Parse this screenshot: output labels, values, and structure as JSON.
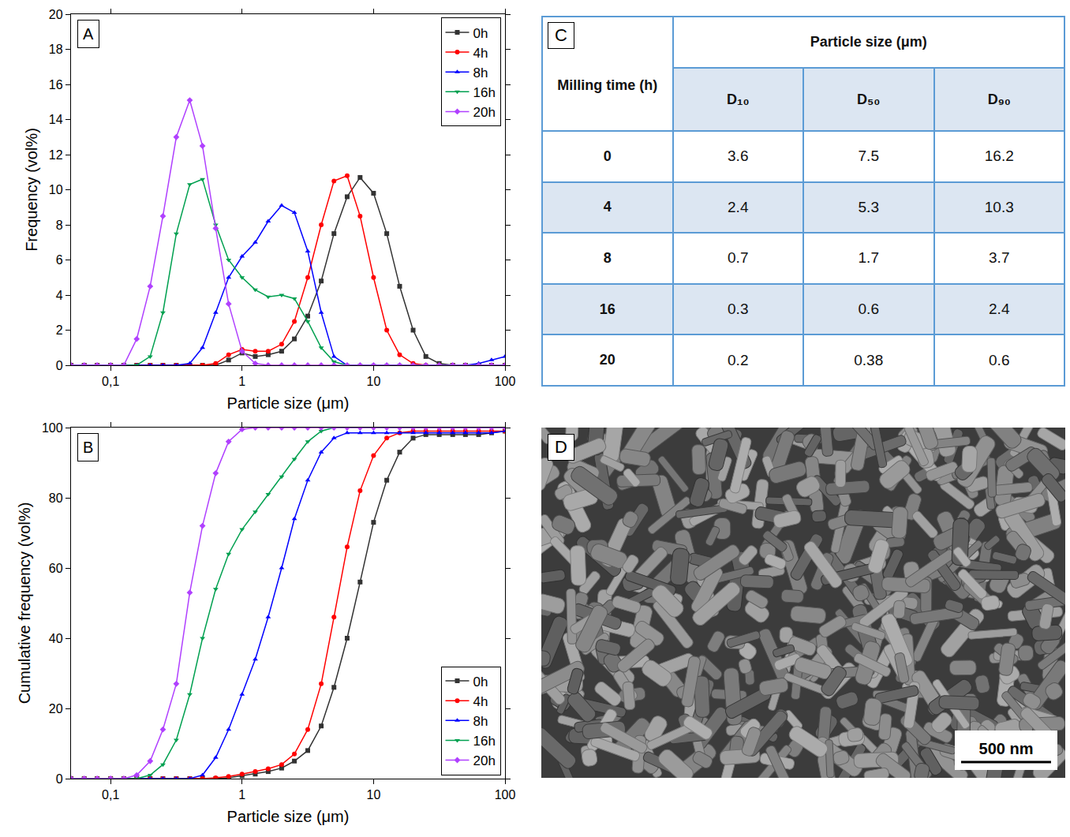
{
  "chart_data": [
    {
      "type": "line",
      "annotations": [
        {
          "text": "A"
        }
      ],
      "x_label": "Particle size (μm)",
      "y_label": "Frequency (vol%)",
      "log": "x",
      "grid": false,
      "legend": "top right",
      "xlim": [
        0.05,
        100
      ],
      "xticks": [
        {
          "value": 0.1,
          "label": "0,1"
        },
        1,
        10,
        100
      ],
      "ylim": [
        0,
        20
      ],
      "yticks": [
        0,
        2,
        4,
        6,
        8,
        10,
        12,
        14,
        16,
        18,
        20
      ],
      "x": [
        0.05,
        0.063,
        0.079,
        0.1,
        0.126,
        0.158,
        0.2,
        0.25,
        0.316,
        0.4,
        0.5,
        0.63,
        0.79,
        1,
        1.26,
        1.58,
        2,
        2.5,
        3.16,
        4,
        5,
        6.3,
        7.9,
        10,
        12.6,
        15.8,
        20,
        25,
        31.6,
        40,
        50,
        63,
        79,
        100
      ],
      "series": [
        {
          "name": "0h",
          "color": "#333333",
          "marker": "square",
          "values": [
            0,
            0,
            0,
            0,
            0,
            0,
            0,
            0,
            0,
            0,
            0,
            0,
            0.3,
            0.7,
            0.5,
            0.6,
            0.8,
            1.5,
            2.8,
            4.8,
            7.5,
            9.6,
            10.7,
            9.8,
            7.5,
            4.5,
            2,
            0.5,
            0.1,
            0,
            0,
            0,
            0,
            0
          ]
        },
        {
          "name": "4h",
          "color": "#ff0000",
          "marker": "circle",
          "values": [
            0,
            0,
            0,
            0,
            0,
            0,
            0,
            0,
            0,
            0,
            0,
            0.1,
            0.6,
            0.9,
            0.8,
            0.8,
            1.2,
            2.5,
            5,
            8,
            10.5,
            10.8,
            8.5,
            5,
            2,
            0.6,
            0.1,
            0,
            0,
            0,
            0,
            0,
            0,
            0
          ]
        },
        {
          "name": "8h",
          "color": "#0000ff",
          "marker": "triangle-up",
          "values": [
            0,
            0,
            0,
            0,
            0,
            0,
            0,
            0,
            0,
            0.1,
            1,
            3,
            5,
            6.2,
            7,
            8.2,
            9.1,
            8.7,
            6.5,
            3,
            0.5,
            0,
            0,
            0,
            0,
            0,
            0,
            0,
            0,
            0,
            0,
            0.1,
            0.3,
            0.5
          ]
        },
        {
          "name": "16h",
          "color": "#00a050",
          "marker": "triangle-down",
          "values": [
            0,
            0,
            0,
            0,
            0,
            0,
            0.5,
            3,
            7.5,
            10.3,
            10.6,
            8,
            6,
            5,
            4.3,
            3.9,
            4,
            3.8,
            2.5,
            1,
            0.2,
            0,
            0,
            0,
            0,
            0,
            0,
            0,
            0,
            0,
            0,
            0,
            0,
            0
          ]
        },
        {
          "name": "20h",
          "color": "#b040ff",
          "marker": "diamond",
          "values": [
            0,
            0,
            0,
            0,
            0,
            1.5,
            4.5,
            8.5,
            13,
            15.1,
            12.5,
            7.8,
            3.5,
            0.8,
            0.1,
            0,
            0,
            0,
            0,
            0,
            0,
            0,
            0,
            0,
            0,
            0,
            0,
            0,
            0,
            0,
            0,
            0,
            0,
            0
          ]
        }
      ]
    },
    {
      "type": "line",
      "annotations": [
        {
          "text": "B"
        }
      ],
      "x_label": "Particle size (μm)",
      "y_label": "Cumulative frequency (vol%)",
      "log": "x",
      "grid": false,
      "legend": "bottom right",
      "xlim": [
        0.05,
        100
      ],
      "xticks": [
        {
          "value": 0.1,
          "label": "0,1"
        },
        1,
        10,
        100
      ],
      "ylim": [
        0,
        100
      ],
      "yticks": [
        0,
        20,
        40,
        60,
        80,
        100
      ],
      "x": [
        0.05,
        0.063,
        0.079,
        0.1,
        0.126,
        0.158,
        0.2,
        0.25,
        0.316,
        0.4,
        0.5,
        0.63,
        0.79,
        1,
        1.26,
        1.58,
        2,
        2.5,
        3.16,
        4,
        5,
        6.3,
        7.9,
        10,
        12.6,
        15.8,
        20,
        25,
        31.6,
        40,
        50,
        63,
        79,
        100
      ],
      "series": [
        {
          "name": "0h",
          "color": "#333333",
          "marker": "square",
          "values": [
            0,
            0,
            0,
            0,
            0,
            0,
            0,
            0,
            0,
            0,
            0,
            0,
            0.2,
            0.8,
            1.3,
            2,
            3,
            5,
            8,
            15,
            26,
            40,
            56,
            73,
            85,
            93,
            97,
            98,
            98,
            98,
            98,
            98,
            98.5,
            99
          ]
        },
        {
          "name": "4h",
          "color": "#ff0000",
          "marker": "circle",
          "values": [
            0,
            0,
            0,
            0,
            0,
            0,
            0,
            0,
            0,
            0,
            0,
            0.2,
            0.6,
            1.3,
            2,
            2.8,
            4,
            7,
            14,
            27,
            46,
            66,
            82,
            92,
            97,
            98.5,
            99,
            99,
            99,
            99,
            99,
            99,
            99,
            99
          ]
        },
        {
          "name": "8h",
          "color": "#0000ff",
          "marker": "triangle-up",
          "values": [
            0,
            0,
            0,
            0,
            0,
            0,
            0,
            0,
            0,
            0,
            1,
            6,
            14,
            24,
            34,
            46,
            60,
            74,
            85,
            93,
            97,
            98.5,
            98.5,
            98.5,
            98.5,
            98.5,
            98.5,
            98.5,
            98.5,
            98.5,
            98.5,
            98.5,
            98.5,
            99
          ]
        },
        {
          "name": "16h",
          "color": "#00a050",
          "marker": "triangle-down",
          "values": [
            0,
            0,
            0,
            0,
            0,
            0,
            1,
            4,
            11,
            24,
            40,
            54,
            64,
            71,
            76,
            81,
            86,
            91,
            96,
            99,
            100,
            100,
            100,
            100,
            100,
            100,
            100,
            100,
            100,
            100,
            100,
            100,
            100,
            100
          ]
        },
        {
          "name": "20h",
          "color": "#b040ff",
          "marker": "diamond",
          "values": [
            0,
            0,
            0,
            0,
            0,
            1,
            5,
            14,
            27,
            53,
            72,
            87,
            96,
            99.5,
            100,
            100,
            100,
            100,
            100,
            100,
            100,
            100,
            100,
            100,
            100,
            100,
            100,
            100,
            100,
            100,
            100,
            100,
            100,
            100
          ]
        }
      ]
    }
  ],
  "table": {
    "label": "C",
    "row_header": "Milling time (h)",
    "group_header": "Particle size (μm)",
    "columns": [
      "D₁₀",
      "D₅₀",
      "D₉₀"
    ],
    "rows": [
      [
        "0",
        "3.6",
        "7.5",
        "16.2"
      ],
      [
        "4",
        "2.4",
        "5.3",
        "10.3"
      ],
      [
        "8",
        "0.7",
        "1.7",
        "3.7"
      ],
      [
        "16",
        "0.3",
        "0.6",
        "2.4"
      ],
      [
        "20",
        "0.2",
        "0.38",
        "0.6"
      ]
    ]
  },
  "image": {
    "label": "D",
    "scale_bar": "500 nm"
  }
}
